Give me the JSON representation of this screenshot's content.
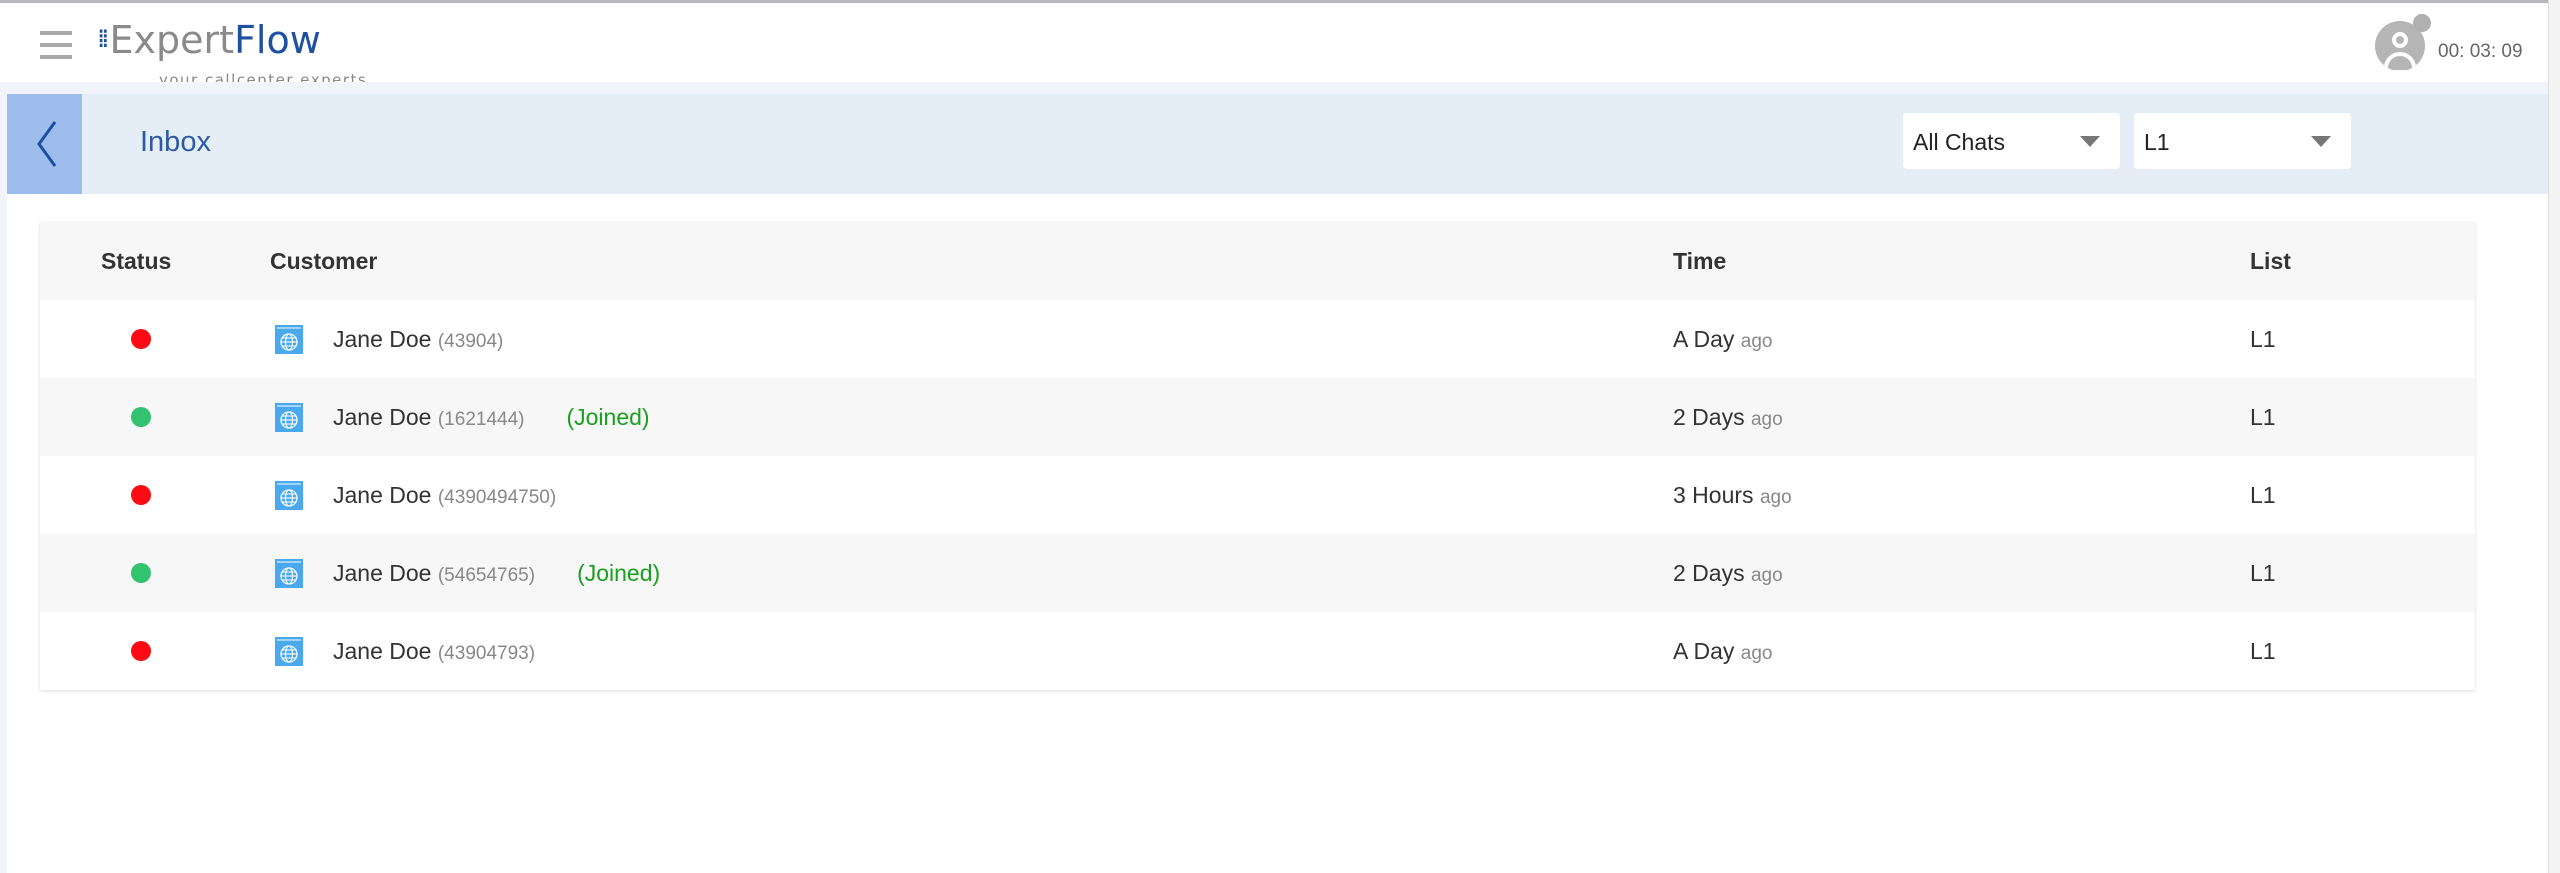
{
  "header": {
    "logo_text": "ExpertFlow",
    "logo_tagline": "your callcenter experts",
    "timer": "00: 03: 09"
  },
  "toolbar": {
    "title": "Inbox",
    "filter_chats": "All Chats",
    "filter_list": "L1"
  },
  "colors": {
    "offline": "#ff0a14",
    "online": "#33c26f",
    "joined": "#19a01e",
    "accent": "#2c5aa8"
  },
  "table": {
    "columns": [
      "Status",
      "Customer",
      "Time",
      "List"
    ],
    "rows": [
      {
        "status": "offline",
        "name": "Jane Doe",
        "id": "(43904)",
        "joined": "",
        "time": "A Day",
        "ago": "ago",
        "list": "L1"
      },
      {
        "status": "online",
        "name": "Jane Doe",
        "id": "(1621444)",
        "joined": "(Joined)",
        "time": "2 Days",
        "ago": "ago",
        "list": "L1"
      },
      {
        "status": "offline",
        "name": "Jane Doe",
        "id": "(4390494750)",
        "joined": "",
        "time": "3 Hours",
        "ago": "ago",
        "list": "L1"
      },
      {
        "status": "online",
        "name": "Jane Doe",
        "id": "(54654765)",
        "joined": "(Joined)",
        "time": "2 Days",
        "ago": "ago",
        "list": "L1"
      },
      {
        "status": "offline",
        "name": "Jane Doe",
        "id": "(43904793)",
        "joined": "",
        "time": "A Day",
        "ago": "ago",
        "list": "L1"
      }
    ]
  }
}
